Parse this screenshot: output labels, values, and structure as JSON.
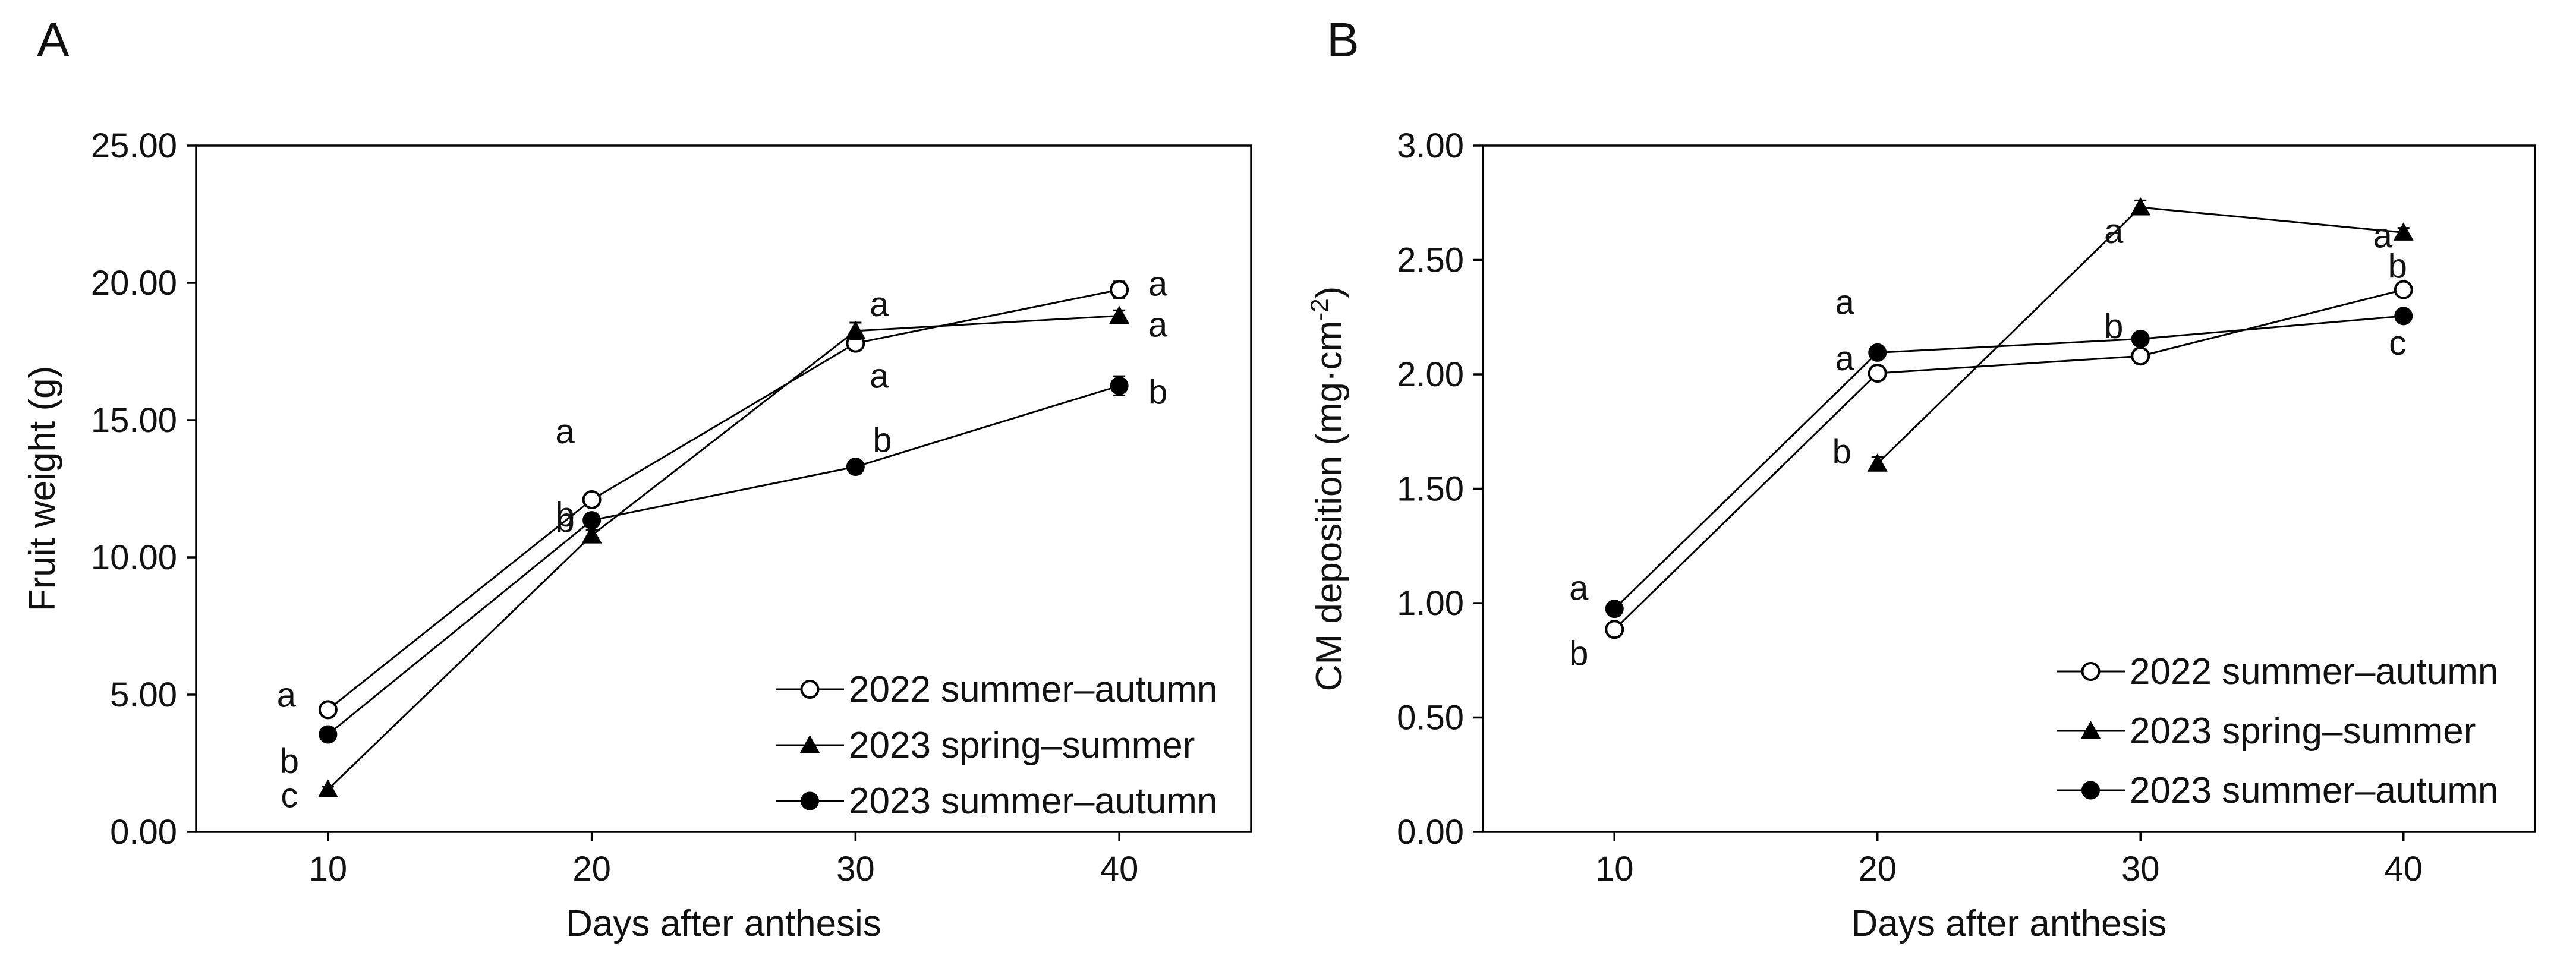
{
  "chart_data": [
    {
      "type": "line",
      "panel_label": "A",
      "xlabel": "Days after anthesis",
      "ylabel": "Fruit weight (g)",
      "ylim": [
        0,
        25
      ],
      "yticks": [
        "0.00",
        "5.00",
        "10.00",
        "15.00",
        "20.00",
        "25.00"
      ],
      "ytick_values": [
        0,
        5,
        10,
        15,
        20,
        25
      ],
      "x": [
        10,
        20,
        30,
        40
      ],
      "xtick_labels": [
        "10",
        "20",
        "30",
        "40"
      ],
      "grid": false,
      "legend_position": "bottom-right",
      "series": [
        {
          "name": "2022 summer–autumn",
          "marker": "open-circle",
          "values": [
            4.45,
            12.1,
            17.8,
            19.75
          ],
          "errors": [
            0.15,
            0.2,
            0.25,
            0.3
          ],
          "letters": [
            "a",
            "a",
            "a",
            "a"
          ]
        },
        {
          "name": "2023 spring–summer",
          "marker": "filled-triangle",
          "values": [
            1.55,
            10.8,
            18.25,
            18.8
          ],
          "errors": [
            0.1,
            0.2,
            0.3,
            0.2
          ],
          "letters": [
            "c",
            "b",
            "a",
            "a"
          ]
        },
        {
          "name": "2023 summer–autumn",
          "marker": "filled-circle",
          "values": [
            3.55,
            11.35,
            13.3,
            16.25
          ],
          "errors": [
            0.1,
            0.2,
            0.2,
            0.35
          ],
          "letters": [
            "b",
            "b",
            "b",
            "b"
          ]
        }
      ]
    },
    {
      "type": "line",
      "panel_label": "B",
      "xlabel": "Days after anthesis",
      "ylabel": "CM deposition (mg·cm",
      "ylabel_sup": "-2",
      "ylabel_end": ")",
      "ylim": [
        0,
        3
      ],
      "yticks": [
        "0.00",
        "0.50",
        "1.00",
        "1.50",
        "2.00",
        "2.50",
        "3.00"
      ],
      "ytick_values": [
        0,
        0.5,
        1,
        1.5,
        2,
        2.5,
        3
      ],
      "x": [
        10,
        20,
        30,
        40
      ],
      "xtick_labels": [
        "10",
        "20",
        "30",
        "40"
      ],
      "grid": false,
      "legend_position": "bottom-right",
      "series": [
        {
          "name": "2022 summer–autumn",
          "marker": "open-circle",
          "x": [
            10,
            20,
            30,
            40
          ],
          "values": [
            0.885,
            2.005,
            2.08,
            2.37
          ],
          "errors": [
            0.03,
            0.02,
            0.03,
            0.02
          ],
          "letters": [
            "b",
            "a",
            "b",
            "b"
          ]
        },
        {
          "name": "2023 spring–summer",
          "marker": "filled-triangle",
          "x": [
            20,
            30,
            40
          ],
          "values": [
            1.61,
            2.73,
            2.62
          ],
          "errors": [
            0.03,
            0.03,
            0.02
          ],
          "letters": [
            "b",
            "a",
            "a"
          ]
        },
        {
          "name": "2023 summer–autumn",
          "marker": "filled-circle",
          "x": [
            10,
            20,
            30,
            40
          ],
          "values": [
            0.975,
            2.095,
            2.155,
            2.255
          ],
          "errors": [
            0.02,
            0.02,
            0.02,
            0.02
          ],
          "letters": [
            "a",
            "a",
            "",
            "c"
          ]
        }
      ]
    }
  ]
}
